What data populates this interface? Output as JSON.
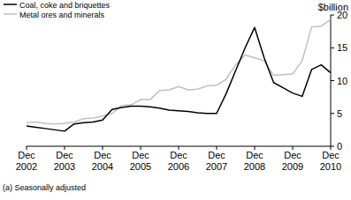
{
  "chart_data": {
    "type": "line",
    "y_label": "$billion",
    "footnote": "(a) Seasonally adjusted",
    "categories": [
      "Dec 2002",
      null,
      null,
      null,
      "Dec 2003",
      null,
      null,
      null,
      "Dec 2004",
      null,
      null,
      null,
      "Dec 2005",
      null,
      null,
      null,
      "Dec 2006",
      null,
      null,
      null,
      "Dec 2007",
      null,
      null,
      null,
      "Dec 2008",
      null,
      null,
      null,
      "Dec 2009",
      null,
      null,
      null,
      "Dec 2010"
    ],
    "series": [
      {
        "name": "Coal, coke and briquettes",
        "color": "#000000",
        "values": [
          3.1,
          2.9,
          2.7,
          2.5,
          2.3,
          3.4,
          3.6,
          3.7,
          4.0,
          5.6,
          5.9,
          6.1,
          6.1,
          6.0,
          5.8,
          5.5,
          5.4,
          5.3,
          5.1,
          5.0,
          5.0,
          8.0,
          11.5,
          15.0,
          18.1,
          13.5,
          9.7,
          8.9,
          8.1,
          7.6,
          11.7,
          12.4,
          11.2
        ]
      },
      {
        "name": "Metal ores and minerals",
        "color": "#c0c0c0",
        "values": [
          3.6,
          3.7,
          3.5,
          3.4,
          3.5,
          3.7,
          4.2,
          4.3,
          4.6,
          5.0,
          6.2,
          6.3,
          7.1,
          7.1,
          8.5,
          8.6,
          9.1,
          8.6,
          8.7,
          9.2,
          9.3,
          10.2,
          12.4,
          13.9,
          13.5,
          13.0,
          10.8,
          10.9,
          11.0,
          13.0,
          18.2,
          18.3,
          19.3
        ]
      }
    ],
    "ylim": [
      0,
      20
    ],
    "yticks": [
      0,
      5,
      10,
      15,
      20
    ],
    "legend": "top-left"
  }
}
